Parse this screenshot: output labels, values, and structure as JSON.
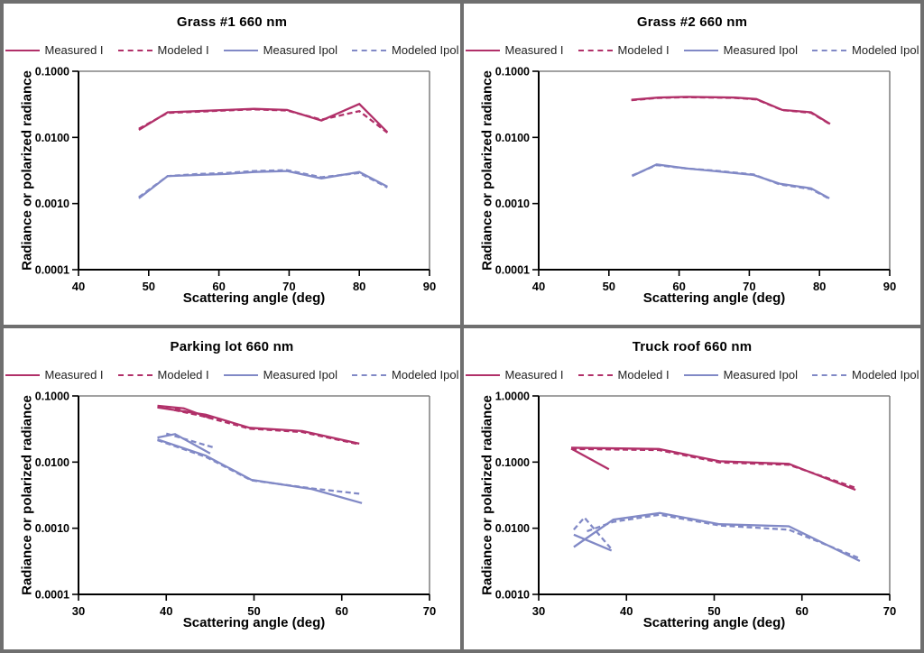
{
  "colors": {
    "crimson": "#b13069",
    "periwinkle": "#8189c6",
    "axis": "#000000",
    "frame": "#6a6a6a",
    "panel_border": "#6f6f6f",
    "background": "#ffffff"
  },
  "chart_data": [
    {
      "type": "line",
      "title": "Grass #1 660 nm",
      "xlabel": "Scattering angle (deg)",
      "ylabel": "Radiance or polarized radiance",
      "y_scale": "log",
      "grid": false,
      "legend_position": "top",
      "xlim": [
        40,
        90
      ],
      "x_ticks": [
        40,
        50,
        60,
        70,
        80,
        90
      ],
      "ylim": [
        0.0001,
        0.1
      ],
      "y_tick_labels": [
        "0.1000",
        "0.0100",
        "0.0010",
        "0.0001"
      ],
      "series": [
        {
          "name": "Measured I",
          "color": "crimson",
          "dashed": false,
          "segments": [
            [
              [
                48.6,
                0.013
              ],
              [
                52.7,
                0.024
              ],
              [
                57,
                0.025
              ],
              [
                61,
                0.026
              ],
              [
                65,
                0.027
              ],
              [
                69.7,
                0.026
              ],
              [
                74.6,
                0.018
              ],
              [
                80,
                0.032
              ],
              [
                84,
                0.012
              ]
            ]
          ]
        },
        {
          "name": "Modeled I",
          "color": "crimson",
          "dashed": true,
          "segments": [
            [
              [
                48.6,
                0.0135
              ],
              [
                52.7,
                0.0235
              ],
              [
                57,
                0.0245
              ],
              [
                61,
                0.0255
              ],
              [
                65,
                0.0265
              ],
              [
                69.7,
                0.0255
              ],
              [
                74.6,
                0.0185
              ],
              [
                80,
                0.025
              ],
              [
                84,
                0.0118
              ]
            ]
          ]
        },
        {
          "name": "Measured Ipol",
          "color": "periwinkle",
          "dashed": false,
          "segments": [
            [
              [
                48.6,
                0.0012
              ],
              [
                52.7,
                0.0026
              ],
              [
                57,
                0.0027
              ],
              [
                61,
                0.0028
              ],
              [
                65,
                0.003
              ],
              [
                69.7,
                0.0031
              ],
              [
                74.6,
                0.0024
              ],
              [
                80,
                0.003
              ],
              [
                84,
                0.0018
              ]
            ]
          ]
        },
        {
          "name": "Modeled Ipol",
          "color": "periwinkle",
          "dashed": true,
          "segments": [
            [
              [
                48.6,
                0.00125
              ],
              [
                52.7,
                0.0026
              ],
              [
                57,
                0.0028
              ],
              [
                61,
                0.0029
              ],
              [
                65,
                0.0031
              ],
              [
                69.7,
                0.0032
              ],
              [
                74.6,
                0.0025
              ],
              [
                80,
                0.0029
              ],
              [
                84,
                0.00175
              ]
            ]
          ]
        }
      ]
    },
    {
      "type": "line",
      "title": "Grass #2 660 nm",
      "xlabel": "Scattering angle (deg)",
      "ylabel": "Radiance or polarized radiance",
      "y_scale": "log",
      "grid": false,
      "legend_position": "top",
      "xlim": [
        40,
        90
      ],
      "x_ticks": [
        40,
        50,
        60,
        70,
        80,
        90
      ],
      "ylim": [
        0.0001,
        0.1
      ],
      "y_tick_labels": [
        "0.1000",
        "0.0100",
        "0.0010",
        "0.0001"
      ],
      "series": [
        {
          "name": "Measured I",
          "color": "crimson",
          "dashed": false,
          "segments": [
            [
              [
                53.2,
                0.037
              ],
              [
                57,
                0.04
              ],
              [
                61,
                0.041
              ],
              [
                65,
                0.0405
              ],
              [
                68,
                0.04
              ],
              [
                71,
                0.038
              ],
              [
                74.7,
                0.026
              ],
              [
                78.8,
                0.024
              ],
              [
                81.5,
                0.016
              ]
            ]
          ]
        },
        {
          "name": "Modeled I",
          "color": "crimson",
          "dashed": true,
          "segments": [
            [
              [
                53.2,
                0.0365
              ],
              [
                57,
                0.0395
              ],
              [
                61,
                0.0405
              ],
              [
                65,
                0.04
              ],
              [
                68,
                0.0395
              ],
              [
                71,
                0.0375
              ],
              [
                74.7,
                0.0258
              ],
              [
                78.8,
                0.0235
              ],
              [
                81.5,
                0.0158
              ]
            ]
          ]
        },
        {
          "name": "Measured Ipol",
          "color": "periwinkle",
          "dashed": false,
          "segments": [
            [
              [
                53.3,
                0.0026
              ],
              [
                56.8,
                0.0039
              ],
              [
                61,
                0.0034
              ],
              [
                65,
                0.0031
              ],
              [
                70.6,
                0.0027
              ],
              [
                74.3,
                0.002
              ],
              [
                78.8,
                0.0017
              ],
              [
                81.4,
                0.0012
              ]
            ]
          ]
        },
        {
          "name": "Modeled Ipol",
          "color": "periwinkle",
          "dashed": true,
          "segments": [
            [
              [
                53.3,
                0.00265
              ],
              [
                56.8,
                0.0038
              ],
              [
                61,
                0.0034
              ],
              [
                65,
                0.00315
              ],
              [
                70.6,
                0.00275
              ],
              [
                74.3,
                0.00195
              ],
              [
                78.8,
                0.00165
              ],
              [
                81.4,
                0.00118
              ]
            ]
          ]
        }
      ]
    },
    {
      "type": "line",
      "title": "Parking lot 660 nm",
      "xlabel": "Scattering angle (deg)",
      "ylabel": "Radiance or polarized radiance",
      "y_scale": "log",
      "grid": false,
      "legend_position": "top",
      "xlim": [
        30,
        70
      ],
      "x_ticks": [
        30,
        40,
        50,
        60,
        70
      ],
      "ylim": [
        0.0001,
        0.1
      ],
      "y_tick_labels": [
        "0.1000",
        "0.0100",
        "0.0010",
        "0.0001"
      ],
      "series": [
        {
          "name": "Measured I",
          "color": "crimson",
          "dashed": false,
          "segments": [
            [
              [
                39,
                0.071
              ],
              [
                42,
                0.065
              ],
              [
                45,
                0.046
              ]
            ],
            [
              [
                39,
                0.067
              ],
              [
                44.5,
                0.052
              ],
              [
                49.5,
                0.033
              ],
              [
                55.5,
                0.0295
              ],
              [
                62,
                0.019
              ]
            ]
          ]
        },
        {
          "name": "Modeled I",
          "color": "crimson",
          "dashed": true,
          "segments": [
            [
              [
                39,
                0.069
              ],
              [
                45,
                0.047
              ]
            ],
            [
              [
                41,
                0.064
              ],
              [
                49.5,
                0.032
              ],
              [
                55.5,
                0.0285
              ],
              [
                62,
                0.0185
              ]
            ]
          ]
        },
        {
          "name": "Measured Ipol",
          "color": "periwinkle",
          "dashed": false,
          "segments": [
            [
              [
                39,
                0.0235
              ],
              [
                41,
                0.0265
              ],
              [
                45,
                0.0135
              ]
            ],
            [
              [
                39,
                0.022
              ],
              [
                44.5,
                0.0125
              ],
              [
                49.7,
                0.0054
              ],
              [
                56.6,
                0.0039
              ],
              [
                62.3,
                0.0024
              ]
            ]
          ]
        },
        {
          "name": "Modeled Ipol",
          "color": "periwinkle",
          "dashed": true,
          "segments": [
            [
              [
                40,
                0.027
              ],
              [
                45.5,
                0.0165
              ]
            ],
            [
              [
                39,
                0.0215
              ],
              [
                44.5,
                0.012
              ],
              [
                49.7,
                0.0053
              ],
              [
                56.6,
                0.004
              ],
              [
                62.2,
                0.0033
              ]
            ]
          ]
        }
      ]
    },
    {
      "type": "line",
      "title": "Truck roof 660 nm",
      "xlabel": "Scattering angle (deg)",
      "ylabel": "Radiance or polarized radiance",
      "y_scale": "log",
      "grid": false,
      "legend_position": "top",
      "xlim": [
        30,
        70
      ],
      "x_ticks": [
        30,
        40,
        50,
        60,
        70
      ],
      "ylim": [
        0.001,
        1.0
      ],
      "y_tick_labels": [
        "1.0000",
        "0.1000",
        "0.0100",
        "0.0010"
      ],
      "series": [
        {
          "name": "Measured I",
          "color": "crimson",
          "dashed": false,
          "segments": [
            [
              [
                33.7,
                0.165
              ],
              [
                43.7,
                0.158
              ],
              [
                50.6,
                0.103
              ],
              [
                58.5,
                0.094
              ],
              [
                66.1,
                0.038
              ]
            ],
            [
              [
                33.7,
                0.16
              ],
              [
                38,
                0.078
              ]
            ]
          ]
        },
        {
          "name": "Modeled I",
          "color": "crimson",
          "dashed": true,
          "segments": [
            [
              [
                33.7,
                0.158
              ],
              [
                43.7,
                0.152
              ],
              [
                50.6,
                0.099
              ],
              [
                58.5,
                0.091
              ],
              [
                66.3,
                0.04
              ]
            ]
          ]
        },
        {
          "name": "Measured Ipol",
          "color": "periwinkle",
          "dashed": false,
          "segments": [
            [
              [
                34,
                0.0052
              ],
              [
                38.5,
                0.0135
              ],
              [
                43.8,
                0.017
              ],
              [
                50.6,
                0.0115
              ],
              [
                58.5,
                0.0107
              ],
              [
                66.6,
                0.0032
              ]
            ],
            [
              [
                34,
                0.008
              ],
              [
                38.3,
                0.0046
              ]
            ]
          ]
        },
        {
          "name": "Modeled Ipol",
          "color": "periwinkle",
          "dashed": true,
          "segments": [
            [
              [
                34,
                0.0095
              ],
              [
                35.2,
                0.0145
              ],
              [
                38.2,
                0.005
              ]
            ],
            [
              [
                35.5,
                0.009
              ],
              [
                38.5,
                0.0125
              ],
              [
                43.8,
                0.016
              ],
              [
                50.6,
                0.011
              ],
              [
                58.5,
                0.0095
              ],
              [
                66.6,
                0.0035
              ]
            ]
          ]
        }
      ]
    }
  ]
}
